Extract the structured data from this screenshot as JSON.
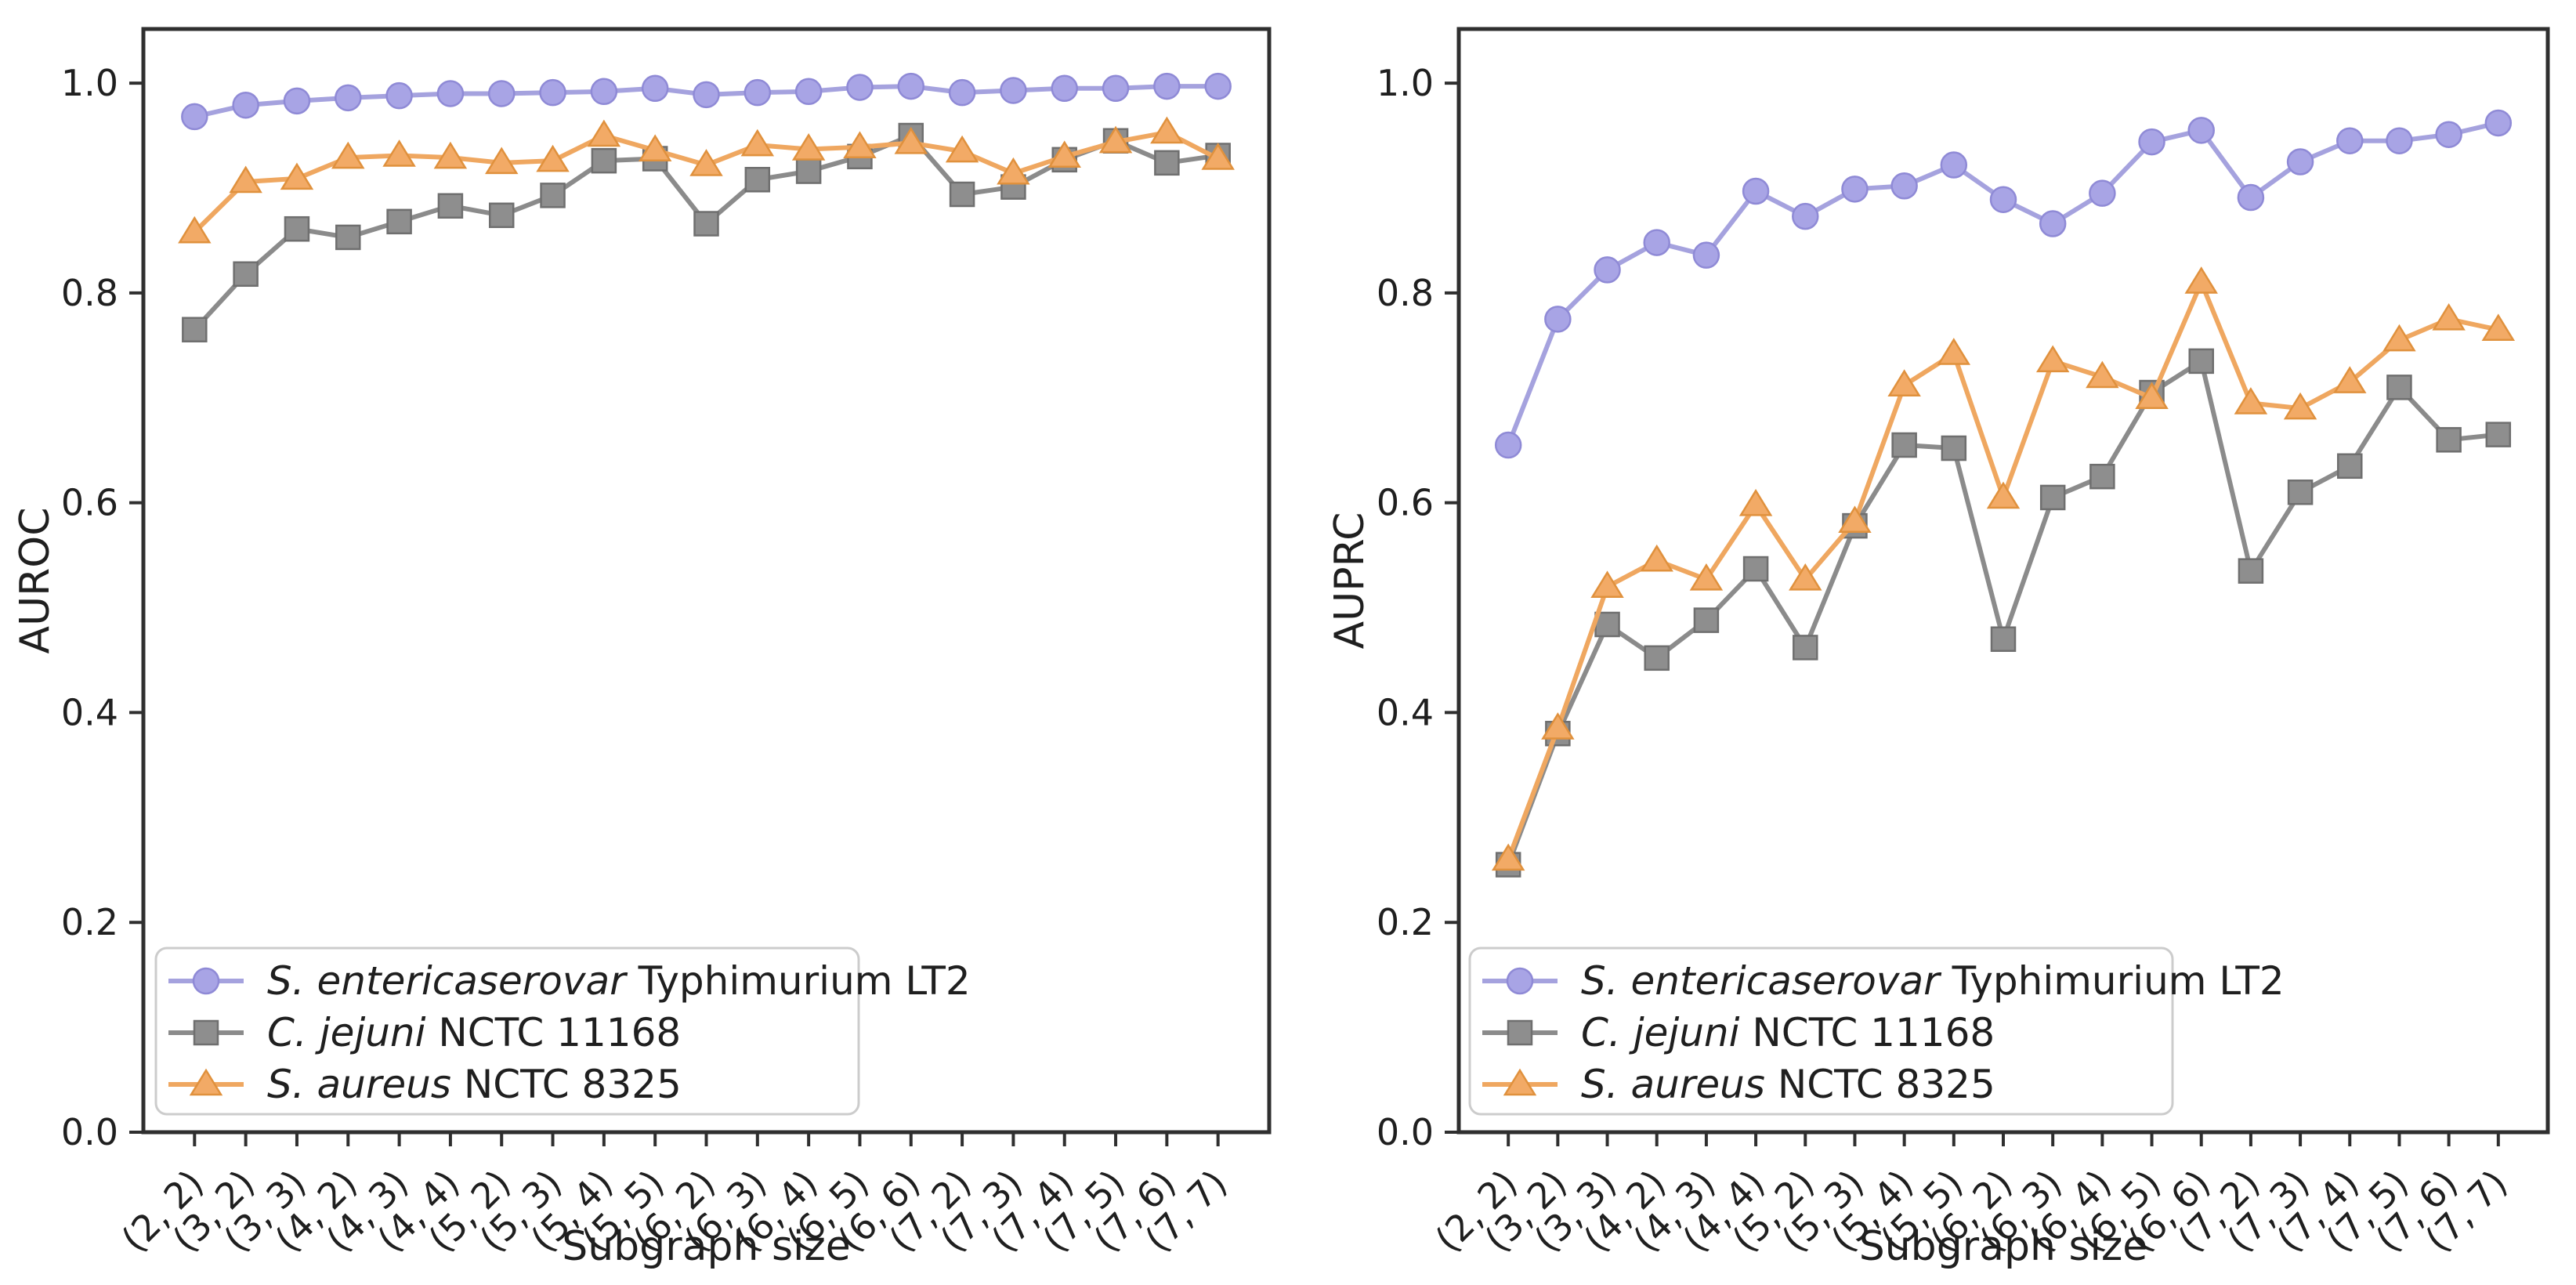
{
  "figure": {
    "background": "#ffffff",
    "text_color": "#1f1f1f",
    "axis_color": "#2f2f2f",
    "legend": {
      "border_color": "#cccccc",
      "fill": "#ffffff",
      "entries": [
        {
          "italic": "S. entericaserovar",
          "regular": " Typhimurium LT2"
        },
        {
          "italic": "C. jejuni",
          "regular": " NCTC 11168"
        },
        {
          "italic": "S. aureus",
          "regular": " NCTC 8325"
        }
      ]
    },
    "series_styles": [
      {
        "key": "s-enterica-serovar-typhimurium-lt2",
        "marker": "circle",
        "line_color": "#a5a2de",
        "fill_color": "#a8a4e5",
        "edge_color": "#8f8ad6"
      },
      {
        "key": "c-jejuni-nctc-11168",
        "marker": "square",
        "line_color": "#8b8b8b",
        "fill_color": "#8e8e8e",
        "edge_color": "#6f6f6f"
      },
      {
        "key": "s-aureus-nctc-8325",
        "marker": "triangle",
        "line_color": "#efa760",
        "fill_color": "#f2aa66",
        "edge_color": "#e0913d"
      }
    ]
  },
  "chart_data": [
    {
      "type": "line",
      "title": "",
      "ylabel": "AUROC",
      "xlabel": "Subgraph size",
      "ylim": [
        0.0,
        1.05
      ],
      "grid": false,
      "legend_position": "lower left",
      "y_tick_labels": [
        "0.0",
        "0.2",
        "0.4",
        "0.6",
        "0.8",
        "1.0"
      ],
      "categories": [
        "(2, 2)",
        "(3, 2)",
        "(3, 3)",
        "(4, 2)",
        "(4, 3)",
        "(4, 4)",
        "(5, 2)",
        "(5, 3)",
        "(5, 4)",
        "(5, 5)",
        "(6, 2)",
        "(6, 3)",
        "(6, 4)",
        "(6, 5)",
        "(6, 6)",
        "(7, 2)",
        "(7, 3)",
        "(7, 4)",
        "(7, 5)",
        "(7, 6)",
        "(7, 7)"
      ],
      "series": [
        {
          "name": "S. entericaserovar Typhimurium LT2",
          "values": [
            0.968,
            0.979,
            0.983,
            0.986,
            0.988,
            0.99,
            0.99,
            0.991,
            0.992,
            0.995,
            0.989,
            0.991,
            0.992,
            0.996,
            0.997,
            0.991,
            0.993,
            0.995,
            0.995,
            0.997,
            0.997
          ]
        },
        {
          "name": "C. jejuni NCTC 11168",
          "values": [
            0.765,
            0.818,
            0.861,
            0.853,
            0.868,
            0.883,
            0.874,
            0.893,
            0.926,
            0.928,
            0.866,
            0.908,
            0.916,
            0.93,
            0.95,
            0.894,
            0.901,
            0.927,
            0.945,
            0.924,
            0.931
          ]
        },
        {
          "name": "S. aureus NCTC 8325",
          "values": [
            0.858,
            0.906,
            0.909,
            0.929,
            0.931,
            0.929,
            0.924,
            0.926,
            0.95,
            0.936,
            0.922,
            0.941,
            0.937,
            0.939,
            0.943,
            0.935,
            0.914,
            0.93,
            0.944,
            0.953,
            0.928
          ]
        }
      ]
    },
    {
      "type": "line",
      "title": "",
      "ylabel": "AUPRC",
      "xlabel": "Subgraph size",
      "ylim": [
        0.0,
        1.05
      ],
      "grid": false,
      "legend_position": "lower left",
      "y_tick_labels": [
        "0.0",
        "0.2",
        "0.4",
        "0.6",
        "0.8",
        "1.0"
      ],
      "categories": [
        "(2, 2)",
        "(3, 2)",
        "(3, 3)",
        "(4, 2)",
        "(4, 3)",
        "(4, 4)",
        "(5, 2)",
        "(5, 3)",
        "(5, 4)",
        "(5, 5)",
        "(6, 2)",
        "(6, 3)",
        "(6, 4)",
        "(6, 5)",
        "(6, 6)",
        "(7, 2)",
        "(7, 3)",
        "(7, 4)",
        "(7, 5)",
        "(7, 6)",
        "(7, 7)"
      ],
      "series": [
        {
          "name": "S. entericaserovar Typhimurium LT2",
          "values": [
            0.655,
            0.775,
            0.822,
            0.848,
            0.836,
            0.897,
            0.873,
            0.899,
            0.902,
            0.922,
            0.889,
            0.866,
            0.895,
            0.944,
            0.955,
            0.891,
            0.925,
            0.945,
            0.945,
            0.951,
            0.962
          ]
        },
        {
          "name": "C. jejuni NCTC 11168",
          "values": [
            0.255,
            0.38,
            0.484,
            0.452,
            0.488,
            0.537,
            0.462,
            0.578,
            0.655,
            0.652,
            0.47,
            0.605,
            0.625,
            0.705,
            0.735,
            0.535,
            0.61,
            0.635,
            0.71,
            0.66,
            0.665
          ]
        },
        {
          "name": "S. aureus NCTC 8325",
          "values": [
            0.26,
            0.385,
            0.52,
            0.545,
            0.527,
            0.598,
            0.527,
            0.582,
            0.712,
            0.742,
            0.605,
            0.735,
            0.72,
            0.7,
            0.81,
            0.695,
            0.69,
            0.715,
            0.755,
            0.775,
            0.765
          ]
        }
      ]
    }
  ]
}
